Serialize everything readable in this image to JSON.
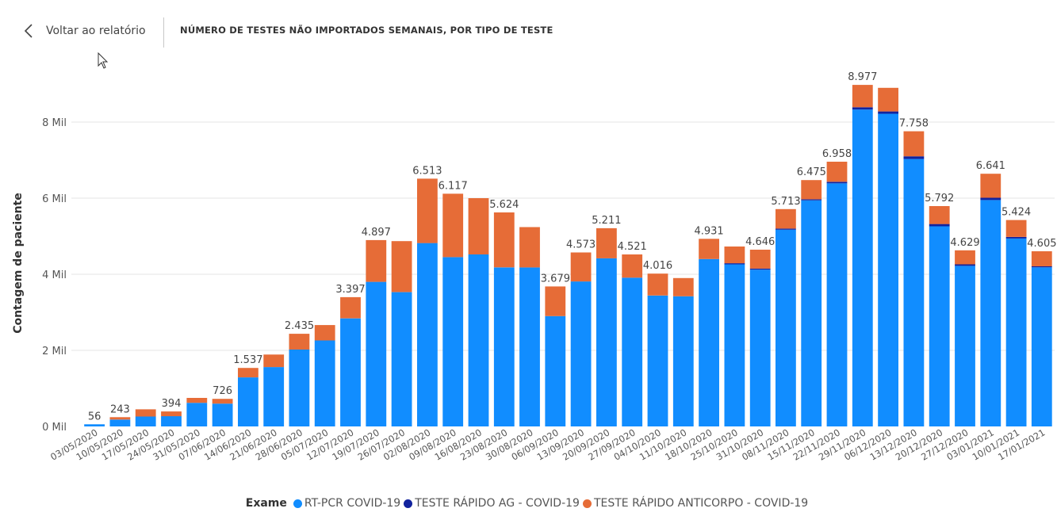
{
  "header": {
    "back_label": "Voltar ao relatório",
    "visual_title": "NÚMERO DE TESTES NÃO IMPORTADOS SEMANAIS, POR TIPO DE TESTE"
  },
  "legend": {
    "title": "Exame",
    "items": [
      {
        "label": "RT-PCR COVID-19",
        "color": "#118DFF"
      },
      {
        "label": "TESTE RÁPIDO AG - COVID-19",
        "color": "#12239E"
      },
      {
        "label": "TESTE RÁPIDO ANTICORPO - COVID-19",
        "color": "#E66C37"
      }
    ]
  },
  "chart_data": {
    "type": "bar",
    "stacked": true,
    "title": "NÚMERO DE TESTES NÃO IMPORTADOS SEMANAIS, POR TIPO DE TESTE",
    "xlabel": "",
    "ylabel": "Contagem de paciente",
    "ylim": [
      0,
      9000
    ],
    "yticks": [
      0,
      2000,
      4000,
      6000,
      8000
    ],
    "ytick_labels": [
      "0 Mil",
      "2 Mil",
      "4 Mil",
      "6 Mil",
      "8 Mil"
    ],
    "grid": true,
    "legend_position": "bottom",
    "categories": [
      "03/05/2020",
      "10/05/2020",
      "17/05/2020",
      "24/05/2020",
      "31/05/2020",
      "07/06/2020",
      "14/06/2020",
      "21/06/2020",
      "28/06/2020",
      "05/07/2020",
      "12/07/2020",
      "19/07/2020",
      "26/07/2020",
      "02/08/2020",
      "09/08/2020",
      "16/08/2020",
      "23/08/2020",
      "30/08/2020",
      "06/09/2020",
      "13/09/2020",
      "20/09/2020",
      "27/09/2020",
      "04/10/2020",
      "11/10/2020",
      "18/10/2020",
      "25/10/2020",
      "31/10/2020",
      "08/11/2020",
      "15/11/2020",
      "22/11/2020",
      "29/11/2020",
      "06/12/2020",
      "13/12/2020",
      "20/12/2020",
      "27/12/2020",
      "03/01/2021",
      "10/01/2021",
      "17/01/2021"
    ],
    "series": [
      {
        "name": "RT-PCR COVID-19",
        "color": "#118DFF",
        "values": [
          56,
          180,
          260,
          270,
          620,
          600,
          1290,
          1560,
          2020,
          2260,
          2840,
          3800,
          3530,
          4820,
          4450,
          4520,
          4180,
          4180,
          2900,
          3810,
          4420,
          3910,
          3440,
          3420,
          4400,
          4260,
          4120,
          5170,
          5940,
          6390,
          8330,
          8220,
          7030,
          5260,
          4220,
          5950,
          4940,
          4180
        ]
      },
      {
        "name": "TESTE RÁPIDO AG - COVID-19",
        "color": "#12239E",
        "values": [
          0,
          0,
          0,
          0,
          0,
          0,
          0,
          0,
          0,
          0,
          0,
          0,
          0,
          0,
          0,
          0,
          0,
          0,
          0,
          0,
          0,
          0,
          0,
          0,
          0,
          30,
          30,
          30,
          30,
          40,
          60,
          60,
          70,
          60,
          40,
          60,
          40,
          30
        ]
      },
      {
        "name": "TESTE RÁPIDO ANTICORPO - COVID-19",
        "color": "#E66C37",
        "values": [
          0,
          63,
          190,
          124,
          130,
          126,
          247,
          330,
          415,
          405,
          557,
          1097,
          1340,
          1693,
          1667,
          1480,
          1444,
          1060,
          779,
          763,
          791,
          611,
          576,
          480,
          531,
          440,
          496,
          513,
          505,
          528,
          587,
          620,
          658,
          472,
          369,
          631,
          444,
          395
        ]
      }
    ],
    "totals": [
      56,
      243,
      450,
      394,
      750,
      726,
      1537,
      1890,
      2435,
      2665,
      3397,
      4897,
      4870,
      6513,
      6117,
      6000,
      5624,
      5240,
      3679,
      4573,
      5211,
      4521,
      4016,
      3900,
      4931,
      4730,
      4646,
      5713,
      6475,
      6958,
      8977,
      8900,
      7758,
      5792,
      4629,
      6641,
      5424,
      4605
    ],
    "data_labels": [
      {
        "index": 0,
        "text": "56"
      },
      {
        "index": 1,
        "text": "243"
      },
      {
        "index": 3,
        "text": "394"
      },
      {
        "index": 5,
        "text": "726"
      },
      {
        "index": 6,
        "text": "1.537"
      },
      {
        "index": 8,
        "text": "2.435"
      },
      {
        "index": 10,
        "text": "3.397"
      },
      {
        "index": 11,
        "text": "4.897"
      },
      {
        "index": 13,
        "text": "6.513"
      },
      {
        "index": 14,
        "text": "6.117"
      },
      {
        "index": 16,
        "text": "5.624"
      },
      {
        "index": 18,
        "text": "3.679"
      },
      {
        "index": 19,
        "text": "4.573"
      },
      {
        "index": 20,
        "text": "5.211"
      },
      {
        "index": 21,
        "text": "4.521"
      },
      {
        "index": 22,
        "text": "4.016"
      },
      {
        "index": 24,
        "text": "4.931"
      },
      {
        "index": 26,
        "text": "4.646"
      },
      {
        "index": 27,
        "text": "5.713"
      },
      {
        "index": 28,
        "text": "6.475"
      },
      {
        "index": 29,
        "text": "6.958"
      },
      {
        "index": 30,
        "text": "8.977"
      },
      {
        "index": 32,
        "text": "7.758"
      },
      {
        "index": 33,
        "text": "5.792"
      },
      {
        "index": 34,
        "text": "4.629"
      },
      {
        "index": 35,
        "text": "6.641"
      },
      {
        "index": 36,
        "text": "5.424"
      },
      {
        "index": 37,
        "text": "4.605"
      }
    ]
  }
}
